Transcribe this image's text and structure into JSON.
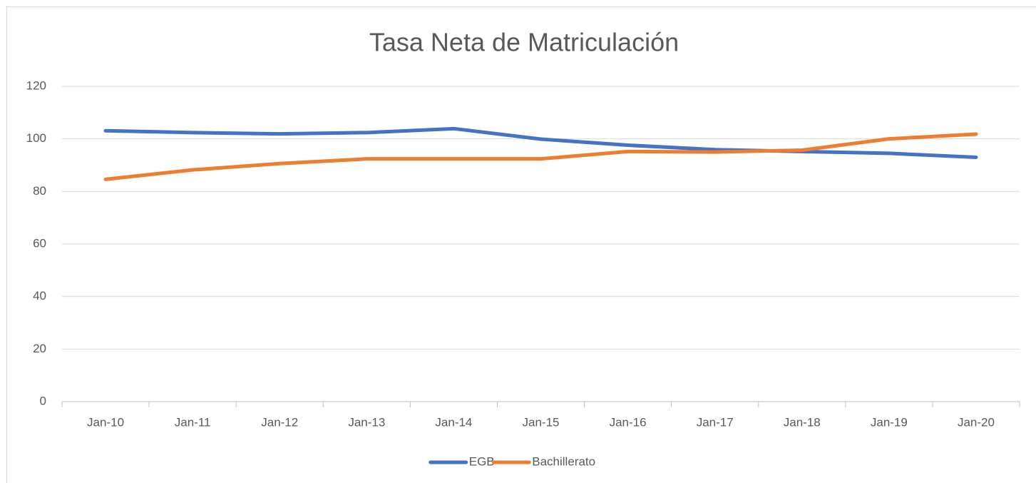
{
  "chart_data": {
    "type": "line",
    "title": "Tasa Neta de Matriculación",
    "categories": [
      "Jan-10",
      "Jan-11",
      "Jan-12",
      "Jan-13",
      "Jan-14",
      "Jan-15",
      "Jan-16",
      "Jan-17",
      "Jan-18",
      "Jan-19",
      "Jan-20"
    ],
    "series": [
      {
        "name": "EGB",
        "color": "#4472c4",
        "values": [
          103.1,
          102.4,
          101.9,
          102.4,
          103.9,
          99.9,
          97.6,
          95.9,
          95.2,
          94.5,
          93.0
        ]
      },
      {
        "name": "Bachillerato",
        "color": "#ed7d31",
        "values": [
          84.6,
          88.2,
          90.6,
          92.4,
          92.4,
          92.4,
          95.2,
          95.0,
          95.7,
          100.0,
          101.8
        ]
      }
    ],
    "ylim": [
      0,
      120
    ],
    "yticks": [
      0,
      20,
      40,
      60,
      80,
      100,
      120
    ],
    "grid": true,
    "legend": "bottom"
  }
}
